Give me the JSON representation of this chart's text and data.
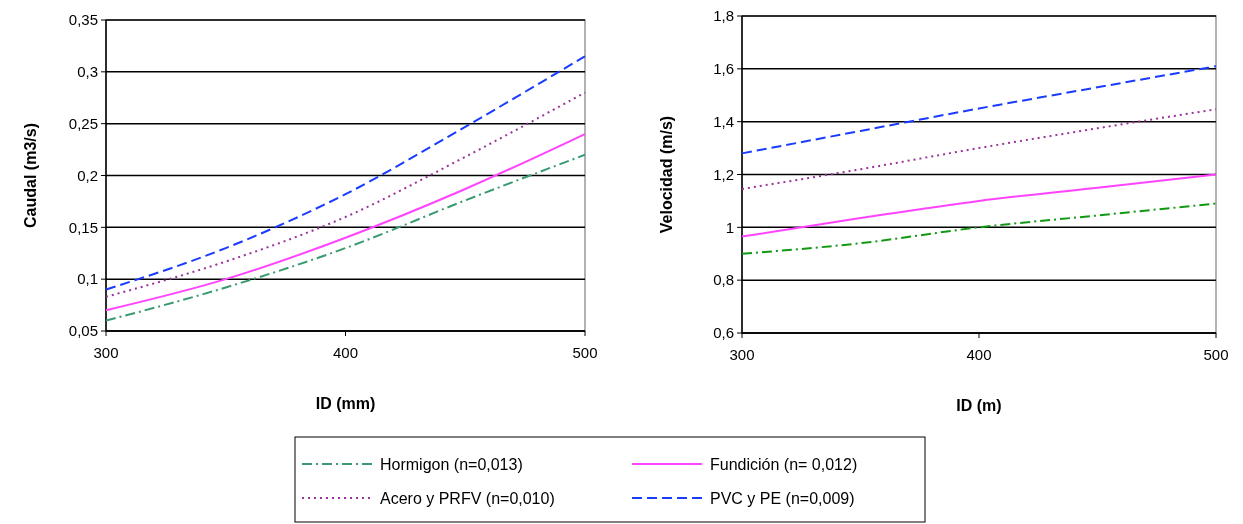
{
  "chart_data": [
    {
      "type": "line",
      "xlabel": "ID (mm)",
      "ylabel": "Caudal (m3/s)",
      "x": [
        300,
        350,
        400,
        450,
        500
      ],
      "xlim": [
        300,
        500
      ],
      "xticks": [
        300,
        400,
        500
      ],
      "ylim": [
        0.05,
        0.35
      ],
      "yticks": [
        {
          "value": 0.05,
          "label": "0,05"
        },
        {
          "value": 0.1,
          "label": "0,1"
        },
        {
          "value": 0.15,
          "label": "0,15"
        },
        {
          "value": 0.2,
          "label": "0,2"
        },
        {
          "value": 0.25,
          "label": "0,25"
        },
        {
          "value": 0.3,
          "label": "0,3"
        },
        {
          "value": 0.35,
          "label": "0,35"
        }
      ],
      "grid": "y",
      "legend": "bottom",
      "series": [
        {
          "name": "Hormigon (n=0,013)",
          "color": "#3a9a70",
          "line_style": "dashdot",
          "values": [
            0.06,
            0.092,
            0.13,
            0.176,
            0.22
          ]
        },
        {
          "name": "Fundición (n= 0,012)",
          "color": "#ff44ff",
          "line_style": "solid",
          "values": [
            0.07,
            0.1,
            0.14,
            0.187,
            0.24
          ]
        },
        {
          "name": "Acero y PRFV (n=0,010)",
          "color": "#993399",
          "line_style": "dotted",
          "values": [
            0.083,
            0.117,
            0.16,
            0.218,
            0.28
          ]
        },
        {
          "name": "PVC y PE (n=0,009)",
          "color": "#1a3cff",
          "line_style": "dashed",
          "values": [
            0.09,
            0.13,
            0.182,
            0.247,
            0.315
          ]
        }
      ]
    },
    {
      "type": "line",
      "xlabel": "ID (m)",
      "ylabel": "Velocidad (m/s)",
      "x": [
        300,
        350,
        400,
        450,
        500
      ],
      "xlim": [
        300,
        500
      ],
      "xticks": [
        300,
        400,
        500
      ],
      "ylim": [
        0.6,
        1.8
      ],
      "yticks": [
        {
          "value": 0.6,
          "label": "0,6"
        },
        {
          "value": 0.8,
          "label": "0,8"
        },
        {
          "value": 1,
          "label": "1"
        },
        {
          "value": 1.2,
          "label": "1,2"
        },
        {
          "value": 1.4,
          "label": "1,4"
        },
        {
          "value": 1.6,
          "label": "1,6"
        },
        {
          "value": 1.8,
          "label": "1,8"
        }
      ],
      "grid": "y",
      "series": [
        {
          "color": "#119911",
          "line_style": "dashdot",
          "values": [
            0.9,
            0.94,
            1.0,
            1.045,
            1.09
          ]
        },
        {
          "color": "#ff44ff",
          "line_style": "solid",
          "values": [
            0.965,
            1.035,
            1.1,
            1.15,
            1.2
          ]
        },
        {
          "color": "#993399",
          "line_style": "dotted",
          "values": [
            1.145,
            1.22,
            1.3,
            1.375,
            1.447
          ]
        },
        {
          "color": "#1a3cff",
          "line_style": "dashed",
          "values": [
            1.28,
            1.365,
            1.45,
            1.53,
            1.61
          ]
        }
      ]
    }
  ]
}
